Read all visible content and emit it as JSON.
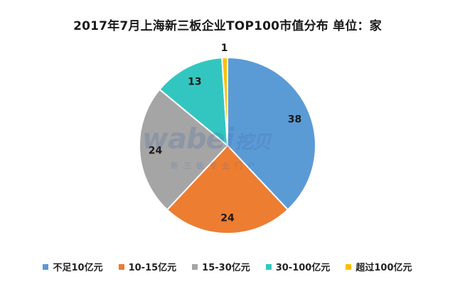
{
  "chart_data": {
    "type": "pie",
    "title": "2017年7月上海新三板企业TOP100市值分布 单位：家",
    "categories": [
      "不足10亿元",
      "10-15亿元",
      "15-30亿元",
      "30-100亿元",
      "超过100亿元"
    ],
    "values": [
      38,
      24,
      24,
      13,
      1
    ],
    "colors": [
      "#5b9bd5",
      "#ed7d31",
      "#a5a5a5",
      "#33c6c0",
      "#ffc000"
    ],
    "legend": "bottom",
    "data_labels": true
  },
  "watermark": {
    "brand": "wabei",
    "brand_cn": "挖贝",
    "tagline": "新三板专业门户"
  }
}
